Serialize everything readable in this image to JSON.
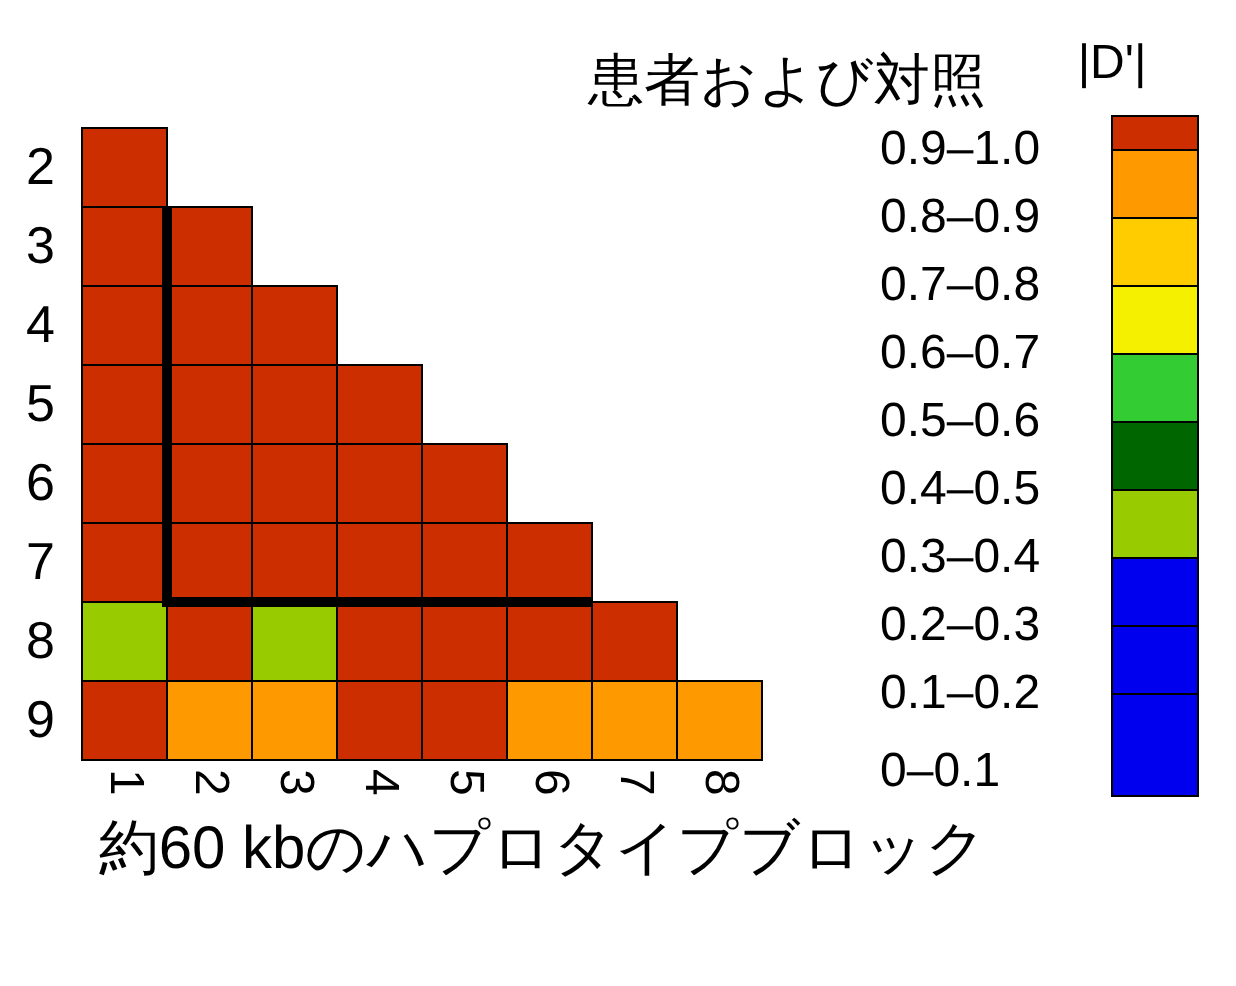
{
  "chart_data": {
    "type": "heatmap",
    "title": "患者および対照",
    "xlabel": "約60 kbのハプロタイプブロック",
    "legend_title": "|D'|",
    "categories": [
      "1",
      "2",
      "3",
      "4",
      "5",
      "6",
      "7",
      "8"
    ],
    "y_categories": [
      "2",
      "3",
      "4",
      "5",
      "6",
      "7",
      "8",
      "9"
    ],
    "cells": [
      [
        0.95,
        null,
        null,
        null,
        null,
        null,
        null,
        null
      ],
      [
        0.95,
        0.95,
        null,
        null,
        null,
        null,
        null,
        null
      ],
      [
        0.95,
        0.95,
        0.95,
        null,
        null,
        null,
        null,
        null
      ],
      [
        0.95,
        0.95,
        0.95,
        0.95,
        null,
        null,
        null,
        null
      ],
      [
        0.95,
        0.95,
        0.95,
        0.95,
        0.95,
        null,
        null,
        null
      ],
      [
        0.95,
        0.95,
        0.95,
        0.95,
        0.95,
        0.95,
        null,
        null
      ],
      [
        0.35,
        0.95,
        0.35,
        0.95,
        0.95,
        0.95,
        0.95,
        null
      ],
      [
        0.95,
        0.85,
        0.85,
        0.95,
        0.95,
        0.85,
        0.85,
        0.85
      ]
    ],
    "clim": [
      0,
      1
    ],
    "cticks": [
      {
        "value": 0.05,
        "label": "0–0.1"
      },
      {
        "value": 0.15,
        "label": "0.1–0.2"
      },
      {
        "value": 0.25,
        "label": "0.2–0.3"
      },
      {
        "value": 0.35,
        "label": "0.3–0.4"
      },
      {
        "value": 0.45,
        "label": "0.4–0.5"
      },
      {
        "value": 0.55,
        "label": "0.5–0.6"
      },
      {
        "value": 0.65,
        "label": "0.6–0.7"
      },
      {
        "value": 0.75,
        "label": "0.7–0.8"
      },
      {
        "value": 0.85,
        "label": "0.8–0.9"
      },
      {
        "value": 0.95,
        "label": "0.9–1.0"
      }
    ],
    "colors": [
      "#0000ee",
      "#0000ee",
      "#0000ee",
      "#99cc00",
      "#006600",
      "#33cc33",
      "#f5f000",
      "#ffcc00",
      "#ff9900",
      "#cc2e00"
    ]
  }
}
